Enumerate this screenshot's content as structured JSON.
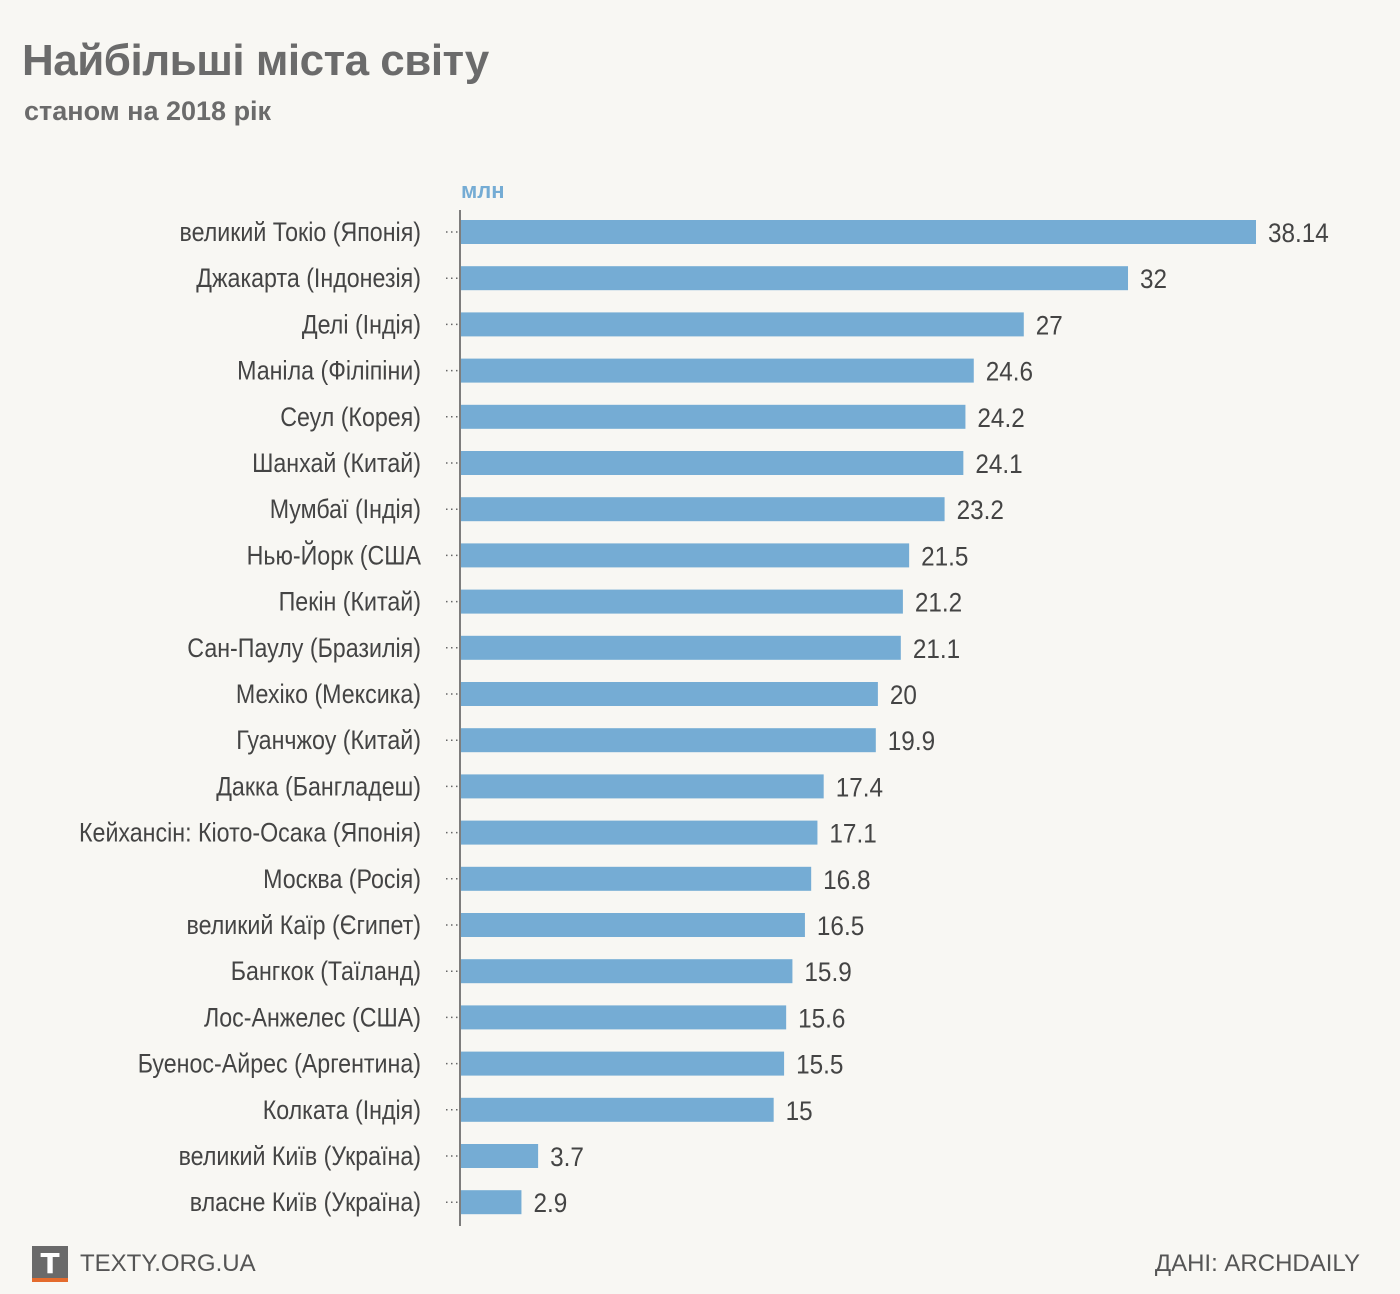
{
  "header": {
    "title": "Найбільші міста світу",
    "subtitle": "станом на 2018 рік",
    "unit": "млн"
  },
  "footer": {
    "logo_letter": "T",
    "site": "TEXTY.ORG.UA",
    "source": "ДАНІ: ARCHDAILY"
  },
  "colors": {
    "bar": "#75acd4",
    "accent": "#e46b2d",
    "text": "#444444",
    "background": "#f8f7f3"
  },
  "chart_data": {
    "type": "bar",
    "orientation": "horizontal",
    "title": "Найбільші міста світу",
    "subtitle": "станом на 2018 рік",
    "unit_label": "млн",
    "categories": [
      "великий Токіо (Японія)",
      "Джакарта (Індонезія)",
      "Делі (Індія)",
      "Маніла (Філіпіни)",
      "Сеул (Корея)",
      "Шанхай (Китай)",
      "Мумбаї (Індія)",
      "Нью-Йорк (США",
      "Пекін (Китай)",
      "Сан-Паулу (Бразилія)",
      "Мехіко (Мексика)",
      "Гуанчжоу (Китай)",
      "Дакка (Бангладеш)",
      "Кейхансін: Кіото-Осака (Японія)",
      "Москва (Росія)",
      "великий Каїр (Єгипет)",
      "Бангкок (Таїланд)",
      "Лос-Анжелес (США)",
      "Буенос-Айрес (Аргентина)",
      "Колката (Індія)",
      "великий Київ (Україна)",
      "власне Київ (Україна)"
    ],
    "values": [
      38.14,
      32,
      27,
      24.6,
      24.2,
      24.1,
      23.2,
      21.5,
      21.2,
      21.1,
      20,
      19.9,
      17.4,
      17.1,
      16.8,
      16.5,
      15.9,
      15.6,
      15.5,
      15,
      3.7,
      2.9
    ],
    "value_labels": [
      "38.14",
      "32",
      "27",
      "24.6",
      "24.2",
      "24.1",
      "23.2",
      "21.5",
      "21.2",
      "21.1",
      "20",
      "19.9",
      "17.4",
      "17.1",
      "16.8",
      "16.5",
      "15.9",
      "15.6",
      "15.5",
      "15",
      "3.7",
      "2.9"
    ],
    "xlim": [
      0,
      38.14
    ],
    "grid": false,
    "legend": "none"
  }
}
